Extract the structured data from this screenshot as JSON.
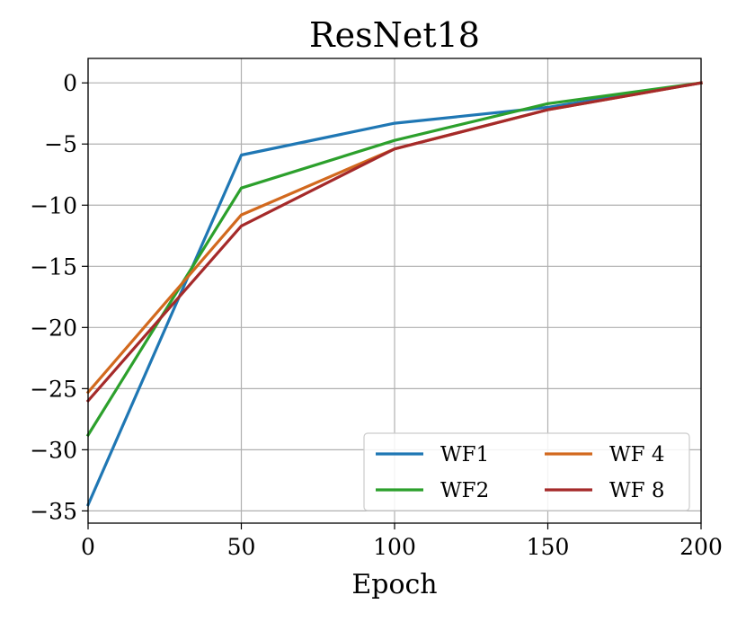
{
  "chart_data": {
    "type": "line",
    "title": "ResNet18",
    "xlabel": "Epoch",
    "ylabel": "",
    "xlim": [
      0,
      200
    ],
    "ylim": [
      -36,
      2
    ],
    "xticks": [
      0,
      50,
      100,
      150,
      200
    ],
    "xtick_labels": [
      "0",
      "50",
      "100",
      "150",
      "200"
    ],
    "yticks": [
      0,
      -5,
      -10,
      -15,
      -20,
      -25,
      -30,
      -35
    ],
    "ytick_labels": [
      "0",
      "−5",
      "−10",
      "−15",
      "−20",
      "−25",
      "−30",
      "−35"
    ],
    "grid": true,
    "legend_placement": "lower-right",
    "legend_columns": 2,
    "x": [
      0,
      50,
      100,
      150,
      200
    ],
    "series": [
      {
        "name": "WF1",
        "color": "#1f77b4",
        "values": [
          -34.5,
          -5.9,
          -3.3,
          -2.0,
          0
        ]
      },
      {
        "name": "WF2",
        "color": "#2ca02c",
        "values": [
          -28.8,
          -8.6,
          -4.7,
          -1.7,
          0
        ]
      },
      {
        "name": "WF 4",
        "color": "#d2691e",
        "values": [
          -25.3,
          -10.8,
          -5.4,
          -2.2,
          0
        ]
      },
      {
        "name": "WF 8",
        "color": "#a52a2a",
        "values": [
          -26.0,
          -11.7,
          -5.4,
          -2.2,
          0
        ]
      }
    ]
  }
}
